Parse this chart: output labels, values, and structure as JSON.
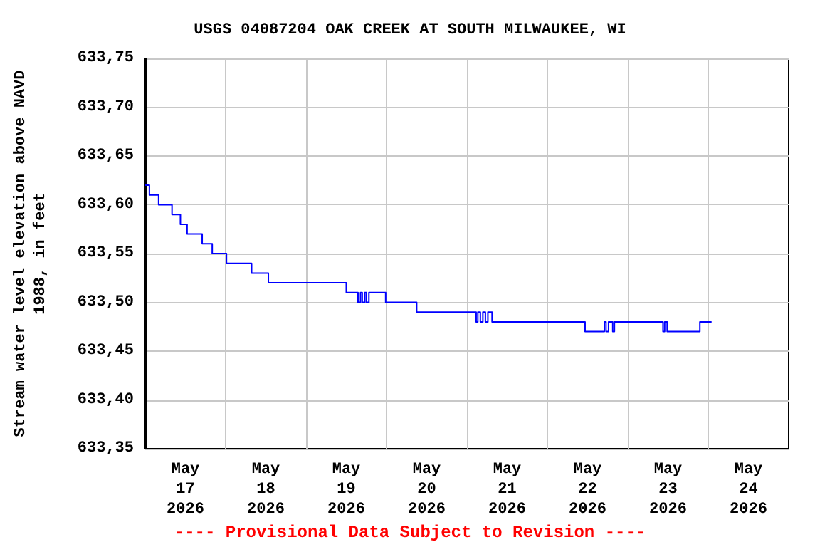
{
  "chart_data": {
    "type": "step",
    "title": "USGS 04087204 OAK CREEK AT SOUTH MILWAUKEE, WI",
    "ylabel": "Stream water level elevation above NAVD 1988, in feet",
    "annotations": [
      "---- Provisional Data Subject to Revision ----"
    ],
    "x": [
      "2026-05-17T00:00",
      "2026-05-17T01:15",
      "2026-05-17T04:00",
      "2026-05-17T08:00",
      "2026-05-17T10:30",
      "2026-05-17T12:30",
      "2026-05-17T17:00",
      "2026-05-17T20:00",
      "2026-05-18T00:15",
      "2026-05-18T07:45",
      "2026-05-18T12:45",
      "2026-05-19T12:00",
      "2026-05-19T15:30",
      "2026-05-19T16:15",
      "2026-05-19T16:45",
      "2026-05-19T17:30",
      "2026-05-19T18:00",
      "2026-05-19T18:45",
      "2026-05-19T23:45",
      "2026-05-20T09:00",
      "2026-05-21T02:45",
      "2026-05-21T03:15",
      "2026-05-21T04:00",
      "2026-05-21T04:45",
      "2026-05-21T05:30",
      "2026-05-21T06:15",
      "2026-05-21T07:30",
      "2026-05-22T11:15",
      "2026-05-22T17:00",
      "2026-05-22T17:30",
      "2026-05-22T18:15",
      "2026-05-22T19:30",
      "2026-05-22T20:00",
      "2026-05-23T10:30",
      "2026-05-23T11:00",
      "2026-05-23T11:45",
      "2026-05-23T21:30",
      "2026-05-24T01:00"
    ],
    "series": [
      {
        "color": "#0000ff",
        "values": [
          633.62,
          633.61,
          633.6,
          633.59,
          633.58,
          633.57,
          633.56,
          633.55,
          633.54,
          633.53,
          633.52,
          633.51,
          633.5,
          633.51,
          633.5,
          633.51,
          633.5,
          633.51,
          633.5,
          633.49,
          633.48,
          633.49,
          633.48,
          633.49,
          633.48,
          633.49,
          633.48,
          633.47,
          633.48,
          633.47,
          633.48,
          633.47,
          633.48,
          633.47,
          633.48,
          633.47,
          633.48,
          633.48
        ]
      }
    ],
    "xlim": [
      "2026-05-17T00:00",
      "2026-05-25T00:00"
    ],
    "xticks": [
      {
        "value": "2026-05-17T12:00",
        "label": "May\n17\n2026"
      },
      {
        "value": "2026-05-18T12:00",
        "label": "May\n18\n2026"
      },
      {
        "value": "2026-05-19T12:00",
        "label": "May\n19\n2026"
      },
      {
        "value": "2026-05-20T12:00",
        "label": "May\n20\n2026"
      },
      {
        "value": "2026-05-21T12:00",
        "label": "May\n21\n2026"
      },
      {
        "value": "2026-05-22T12:00",
        "label": "May\n22\n2026"
      },
      {
        "value": "2026-05-23T12:00",
        "label": "May\n23\n2026"
      },
      {
        "value": "2026-05-24T12:00",
        "label": "May\n24\n2026"
      },
      {
        "value": "2026-05-18T00:00",
        "label": null
      },
      {
        "value": "2026-05-19T00:00",
        "label": null
      },
      {
        "value": "2026-05-20T00:00",
        "label": null
      },
      {
        "value": "2026-05-21T00:00",
        "label": null
      },
      {
        "value": "2026-05-22T00:00",
        "label": null
      },
      {
        "value": "2026-05-23T00:00",
        "label": null
      },
      {
        "value": "2026-05-24T00:00",
        "label": null
      }
    ],
    "ylim": [
      633.35,
      633.75
    ],
    "yticks": [
      {
        "value": 633.35,
        "label": "633,35"
      },
      {
        "value": 633.4,
        "label": "633,40"
      },
      {
        "value": 633.45,
        "label": "633,45"
      },
      {
        "value": 633.5,
        "label": "633,50"
      },
      {
        "value": 633.55,
        "label": "633,55"
      },
      {
        "value": 633.6,
        "label": "633,60"
      },
      {
        "value": 633.65,
        "label": "633,65"
      },
      {
        "value": 633.7,
        "label": "633,70"
      },
      {
        "value": 633.75,
        "label": "633,75"
      }
    ],
    "grid": true,
    "marker": "none",
    "line_style": "solid"
  }
}
